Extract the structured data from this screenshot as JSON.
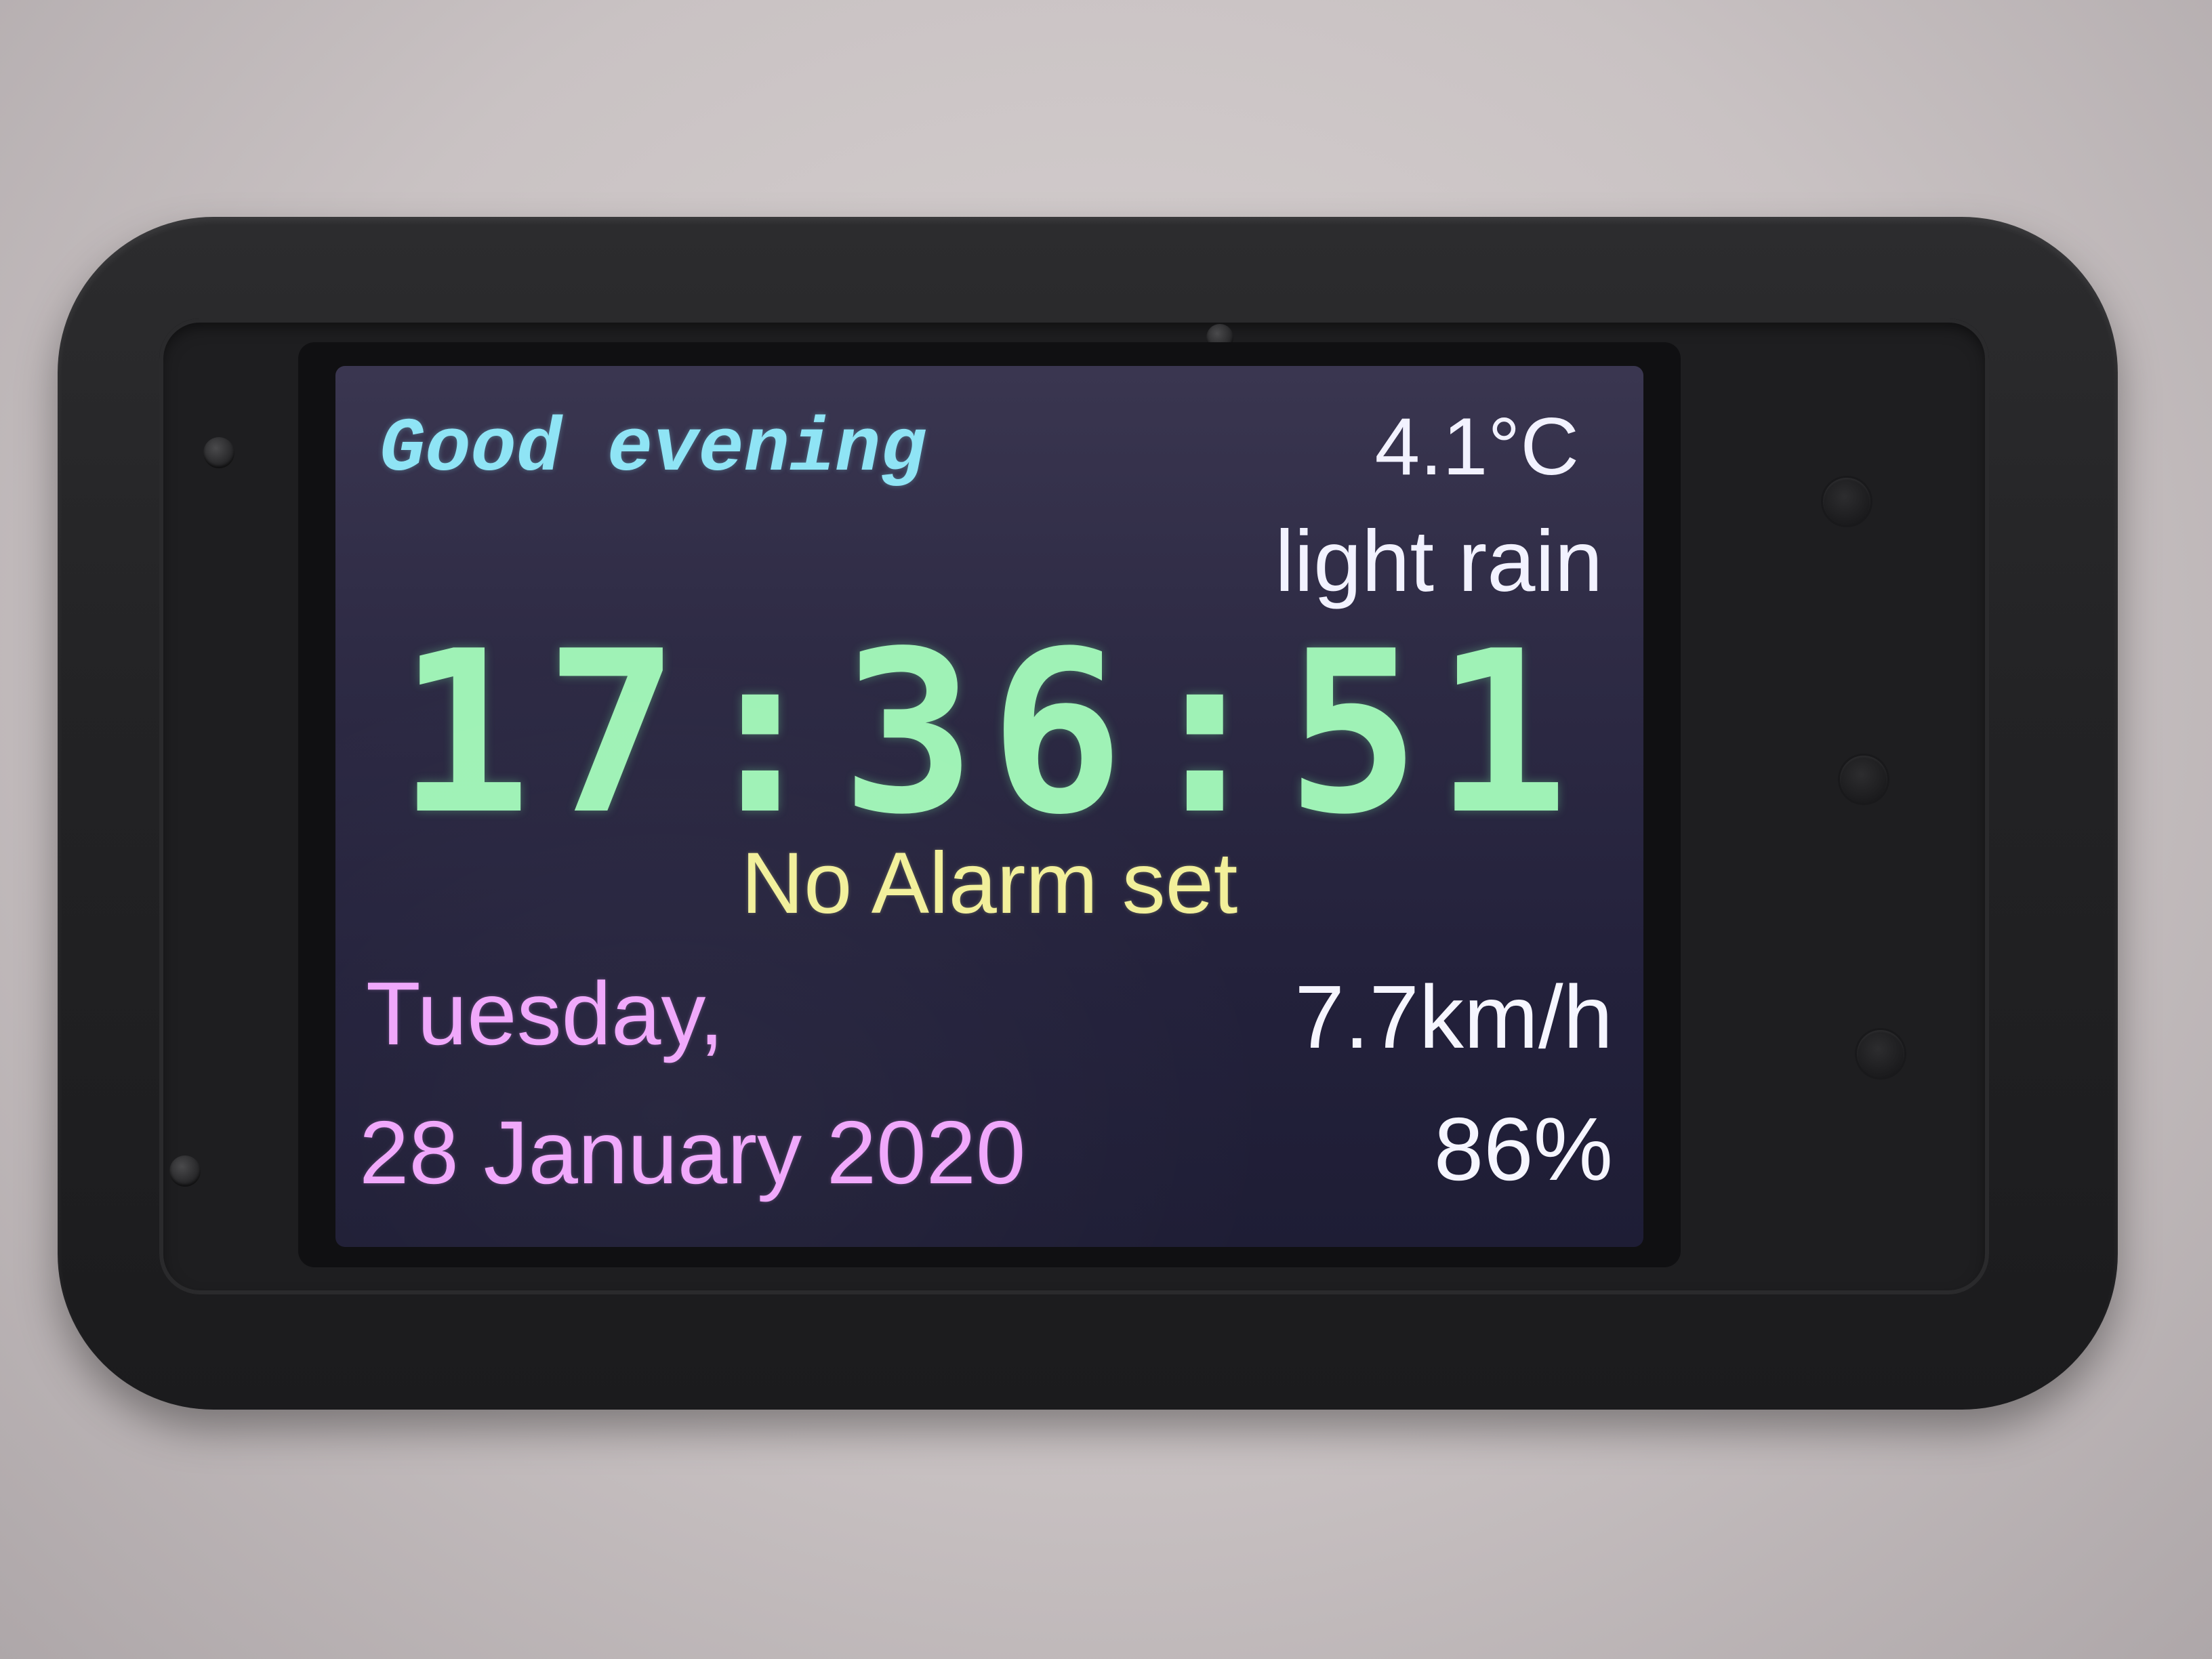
{
  "display": {
    "greeting": "Good evening",
    "temperature": "4.1°C",
    "condition": "light rain",
    "time": "17:36:51",
    "alarm_status": "No Alarm set",
    "weekday": "Tuesday,",
    "date": "28 January 2020",
    "wind_speed": "7.7km/h",
    "humidity": "86%"
  },
  "colors": {
    "greeting": "#8fe4f5",
    "clock": "#9ff2b6",
    "alarm": "#f2f09a",
    "date": "#f0a6fb",
    "weather": "#f2f2ff",
    "screen_background": "#2d2a44",
    "case": "#232325"
  }
}
